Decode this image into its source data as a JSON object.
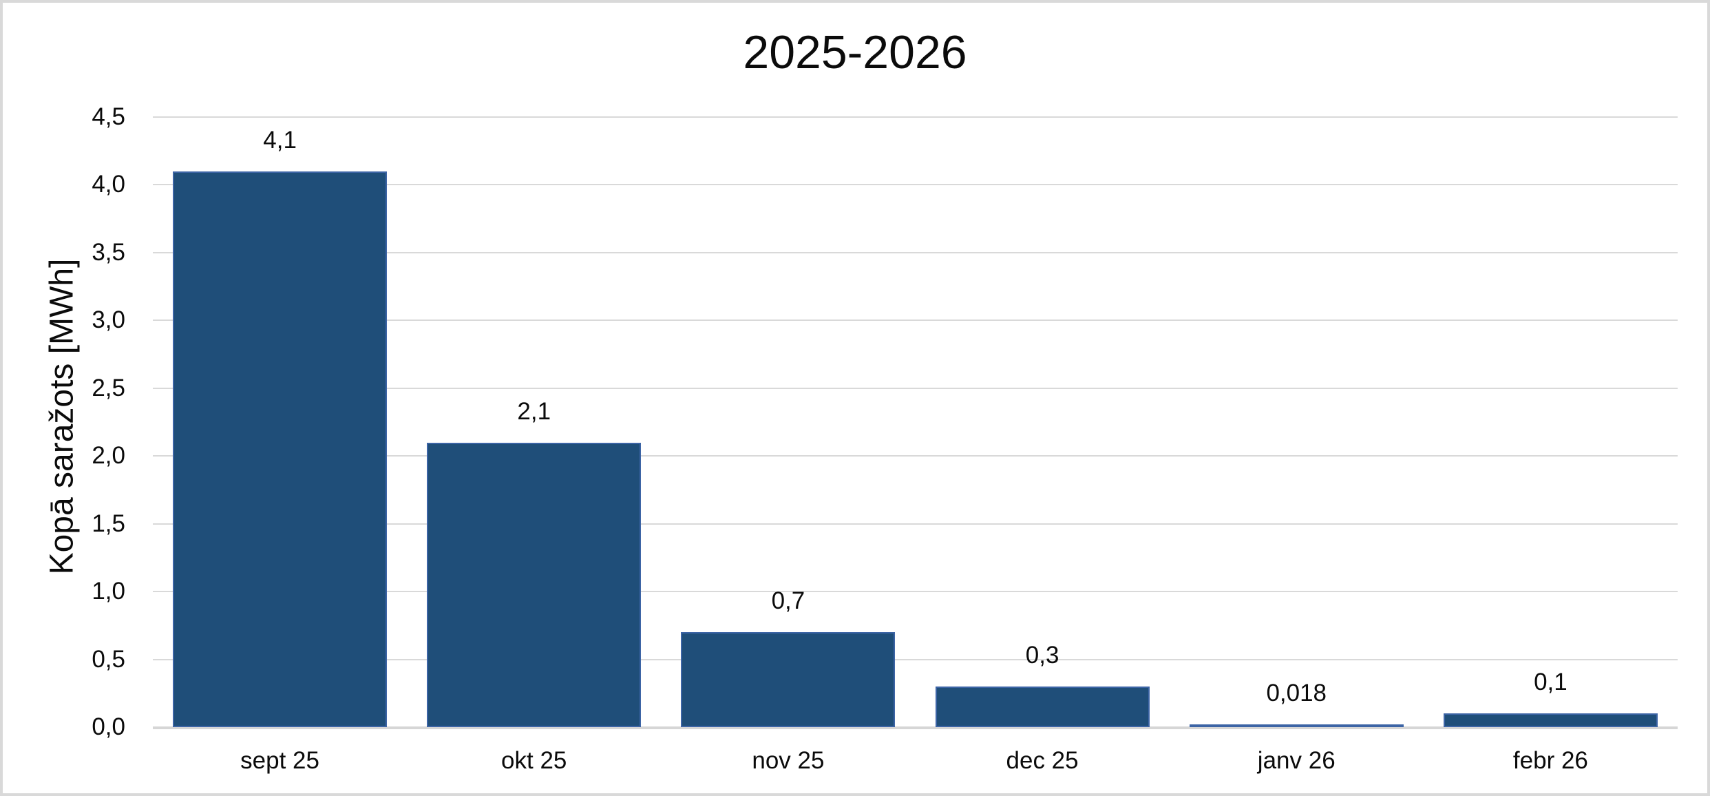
{
  "frame": {
    "border_color": "#D9D9D9",
    "background": "#FFFFFF"
  },
  "chart_data": {
    "type": "bar",
    "title": "2025-2026",
    "xlabel": "",
    "ylabel": "Kopā saražots [MWh]",
    "categories": [
      "sept 25",
      "okt 25",
      "nov 25",
      "dec 25",
      "janv 26",
      "febr 26"
    ],
    "values": [
      4.1,
      2.1,
      0.7,
      0.3,
      0.018,
      0.1
    ],
    "data_labels": [
      "4,1",
      "2,1",
      "0,7",
      "0,3",
      "0,018",
      "0,1"
    ],
    "ylim": [
      0,
      4.5
    ],
    "ytick_step": 0.5,
    "ytick_labels": [
      "0,0",
      "0,5",
      "1,0",
      "1,5",
      "2,0",
      "2,5",
      "3,0",
      "3,5",
      "4,0",
      "4,5"
    ],
    "decimal_separator": ",",
    "grid": true,
    "legend": false,
    "colors": {
      "bar_fill": "#1F4E79",
      "bar_border": "#3C64A5",
      "gridline": "#D9D9D9",
      "axis_line": "#D6D6D6",
      "text": "#0B0B0B"
    }
  }
}
